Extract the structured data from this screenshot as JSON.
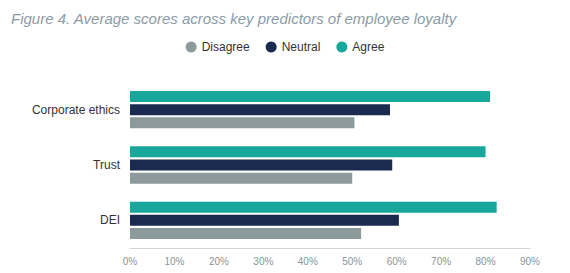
{
  "chart_data": {
    "type": "bar",
    "title": "Figure 4. Average scores across key predictors of employee loyalty",
    "orientation": "horizontal",
    "categories": [
      "Corporate ethics",
      "Trust",
      "DEI"
    ],
    "series": [
      {
        "name": "Disagree",
        "color": "#8c9a9c",
        "values": [
          50.5,
          50,
          52
        ]
      },
      {
        "name": "Neutral",
        "color": "#1b2b50",
        "values": [
          58.5,
          59,
          60.5
        ]
      },
      {
        "name": "Agree",
        "color": "#17a89b",
        "values": [
          81,
          80,
          82.5
        ]
      }
    ],
    "xlim": [
      0,
      90
    ],
    "xticks": [
      {
        "value": 0,
        "label": "0%"
      },
      {
        "value": 10,
        "label": "10%"
      },
      {
        "value": 20,
        "label": "20%"
      },
      {
        "value": 30,
        "label": "30%"
      },
      {
        "value": 40,
        "label": "40%"
      },
      {
        "value": 50,
        "label": "50%"
      },
      {
        "value": 60,
        "label": "60%"
      },
      {
        "value": 70,
        "label": "70%"
      },
      {
        "value": 80,
        "label": "80%"
      },
      {
        "value": 90,
        "label": "90%"
      }
    ],
    "grid": false,
    "legend": "top"
  }
}
